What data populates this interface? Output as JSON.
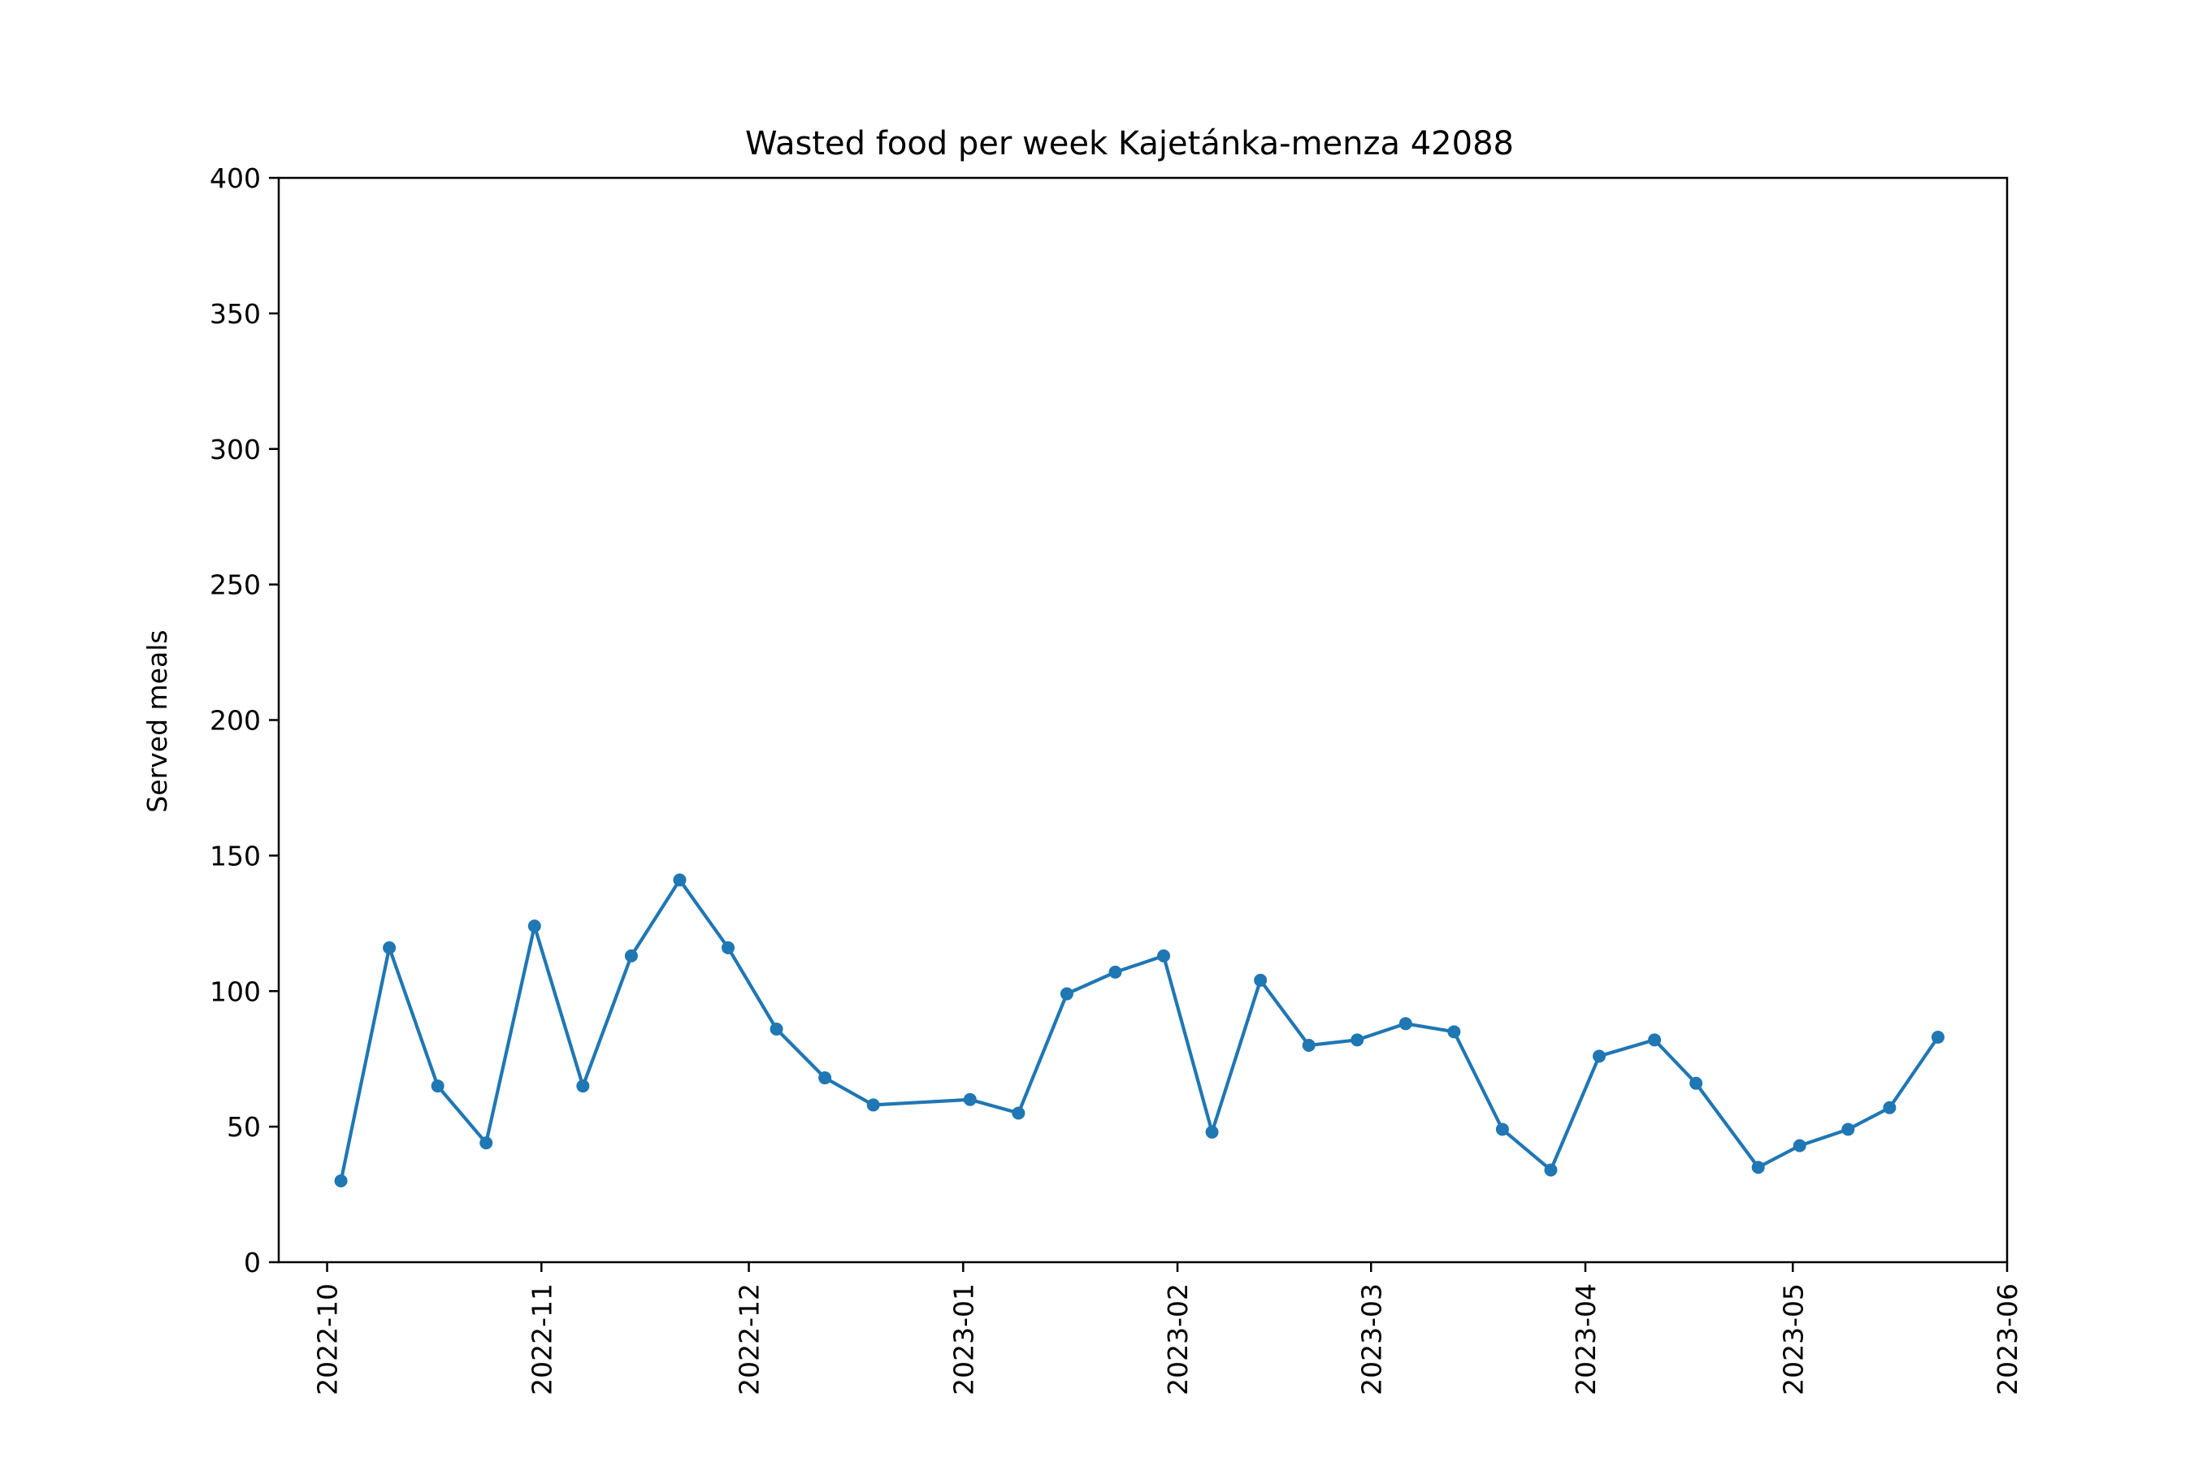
{
  "chart_data": {
    "type": "line",
    "title": "Wasted food per week Kajetánka-menza 42088",
    "xlabel": "",
    "ylabel": "Served meals",
    "ylim": [
      0,
      400
    ],
    "xlim": [
      "2022-09-24",
      "2023-06-01"
    ],
    "grid": false,
    "y_ticks": [
      0,
      50,
      100,
      150,
      200,
      250,
      300,
      350,
      400
    ],
    "x_ticks": [
      "2022-10",
      "2022-11",
      "2022-12",
      "2023-01",
      "2023-02",
      "2023-03",
      "2023-04",
      "2023-05",
      "2023-06"
    ],
    "series": [
      {
        "color": "#1f77b4",
        "x": [
          "2022-10-03",
          "2022-10-10",
          "2022-10-17",
          "2022-10-24",
          "2022-10-31",
          "2022-11-07",
          "2022-11-14",
          "2022-11-21",
          "2022-11-28",
          "2022-12-05",
          "2022-12-12",
          "2022-12-19",
          "2023-01-02",
          "2023-01-09",
          "2023-01-16",
          "2023-01-23",
          "2023-01-30",
          "2023-02-06",
          "2023-02-13",
          "2023-02-20",
          "2023-02-27",
          "2023-03-06",
          "2023-03-13",
          "2023-03-20",
          "2023-03-27",
          "2023-04-03",
          "2023-04-11",
          "2023-04-17",
          "2023-04-26",
          "2023-05-02",
          "2023-05-09",
          "2023-05-15",
          "2023-05-22"
        ],
        "values": [
          30,
          116,
          65,
          44,
          124,
          65,
          113,
          141,
          116,
          86,
          68,
          58,
          60,
          55,
          99,
          107,
          113,
          48,
          104,
          80,
          82,
          88,
          85,
          49,
          34,
          76,
          82,
          66,
          35,
          43,
          49,
          57,
          83
        ]
      }
    ]
  }
}
